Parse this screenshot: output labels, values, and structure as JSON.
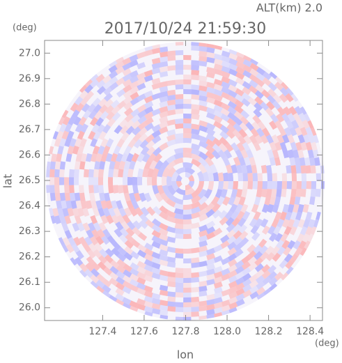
{
  "chart_data": {
    "type": "radar",
    "title": "2017/10/24 21:59:30",
    "subtitle": "ALT(km) 2.0",
    "x_label": "lon",
    "x_unit": "(deg)",
    "y_label": "lat",
    "y_unit": "(deg)",
    "xlim": [
      127.12,
      128.46
    ],
    "ylim": [
      25.95,
      27.05
    ],
    "xticks": [
      127.4,
      127.6,
      127.8,
      {
        "value": 128.0,
        "label": "128.0"
      },
      128.2,
      128.4
    ],
    "yticks": [
      {
        "value": 26.0,
        "label": "26.0"
      },
      26.1,
      26.2,
      26.3,
      26.4,
      26.5,
      26.6,
      26.7,
      26.8,
      26.9,
      {
        "value": 27.0,
        "label": "27.0"
      }
    ]
  }
}
